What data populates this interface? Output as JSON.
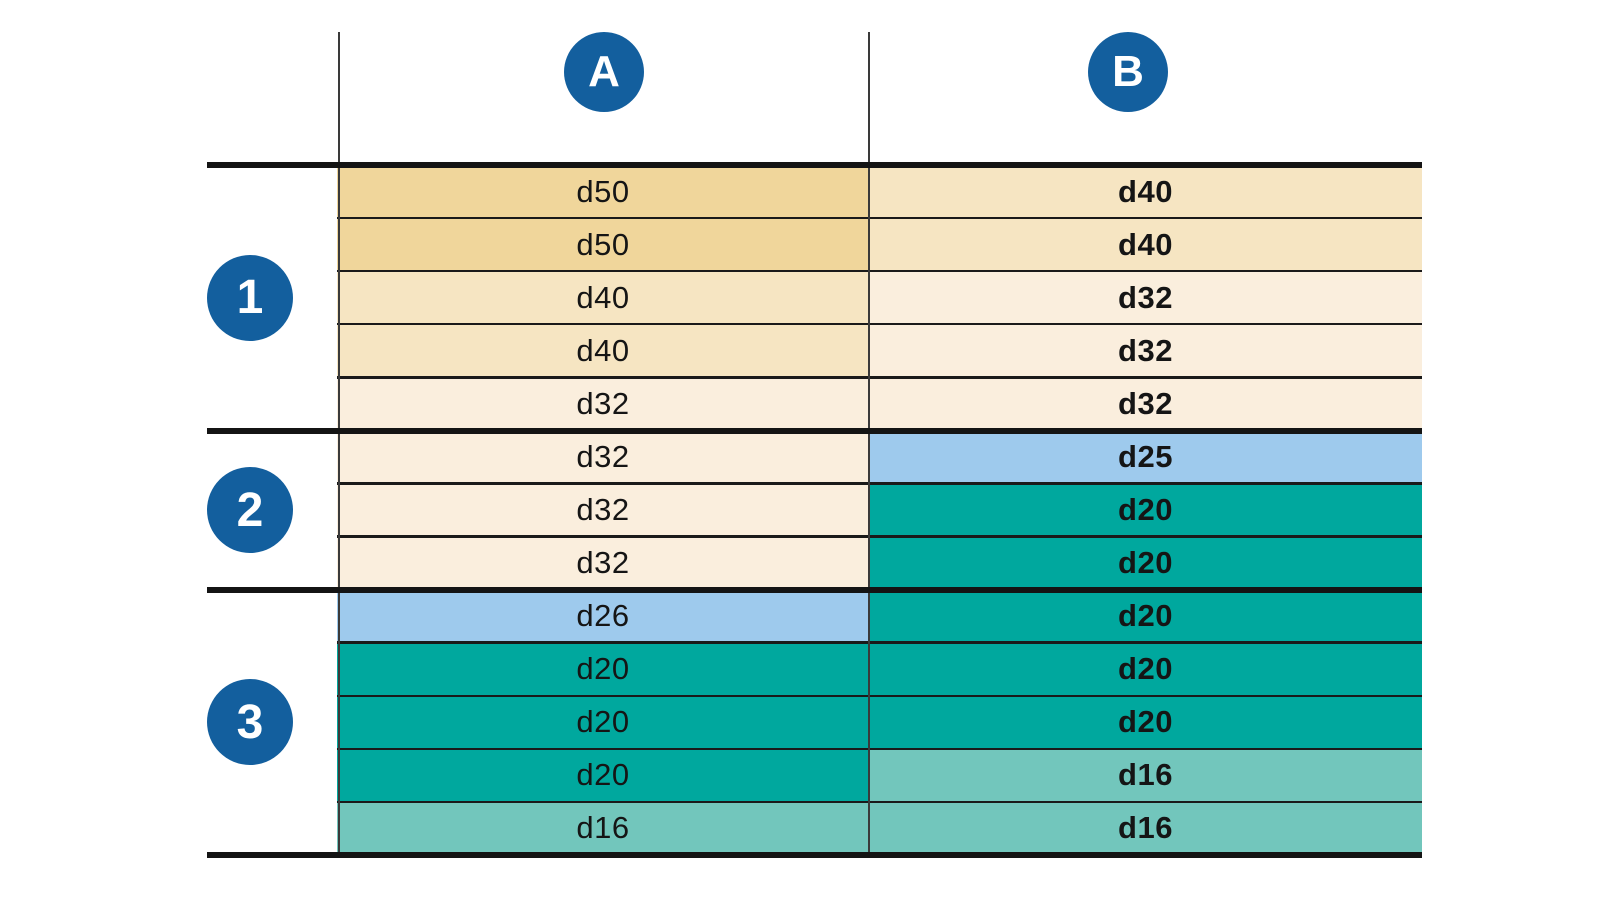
{
  "palette": {
    "gold": "#f0d69b",
    "tan": "#f6e5c2",
    "cream": "#faeedd",
    "blue": "#9ecaed",
    "teal": "#00a89e",
    "teal_light": "#72c6bc",
    "badge_blue": "#135f9e",
    "line_color": "#1a1a1a",
    "text_color": "#151515"
  },
  "columns": [
    {
      "id": "A",
      "label": "A"
    },
    {
      "id": "B",
      "label": "B"
    }
  ],
  "groups": [
    {
      "label": "1",
      "rows": [
        {
          "a": {
            "text": "d50",
            "color": "gold"
          },
          "b": {
            "text": "d40",
            "color": "tan"
          }
        },
        {
          "a": {
            "text": "d50",
            "color": "gold"
          },
          "b": {
            "text": "d40",
            "color": "tan"
          }
        },
        {
          "a": {
            "text": "d40",
            "color": "tan"
          },
          "b": {
            "text": "d32",
            "color": "cream"
          }
        },
        {
          "a": {
            "text": "d40",
            "color": "tan"
          },
          "b": {
            "text": "d32",
            "color": "cream"
          }
        },
        {
          "a": {
            "text": "d32",
            "color": "cream"
          },
          "b": {
            "text": "d32",
            "color": "cream"
          }
        }
      ]
    },
    {
      "label": "2",
      "rows": [
        {
          "a": {
            "text": "d32",
            "color": "cream"
          },
          "b": {
            "text": "d25",
            "color": "blue"
          }
        },
        {
          "a": {
            "text": "d32",
            "color": "cream"
          },
          "b": {
            "text": "d20",
            "color": "teal"
          }
        },
        {
          "a": {
            "text": "d32",
            "color": "cream"
          },
          "b": {
            "text": "d20",
            "color": "teal"
          }
        }
      ]
    },
    {
      "label": "3",
      "rows": [
        {
          "a": {
            "text": "d26",
            "color": "blue"
          },
          "b": {
            "text": "d20",
            "color": "teal"
          }
        },
        {
          "a": {
            "text": "d20",
            "color": "teal"
          },
          "b": {
            "text": "d20",
            "color": "teal"
          }
        },
        {
          "a": {
            "text": "d20",
            "color": "teal"
          },
          "b": {
            "text": "d20",
            "color": "teal"
          }
        },
        {
          "a": {
            "text": "d20",
            "color": "teal"
          },
          "b": {
            "text": "d16",
            "color": "teal_light"
          }
        },
        {
          "a": {
            "text": "d16",
            "color": "teal_light"
          },
          "b": {
            "text": "d16",
            "color": "teal_light"
          }
        }
      ]
    }
  ],
  "layout_values": {
    "row_count": 13
  }
}
